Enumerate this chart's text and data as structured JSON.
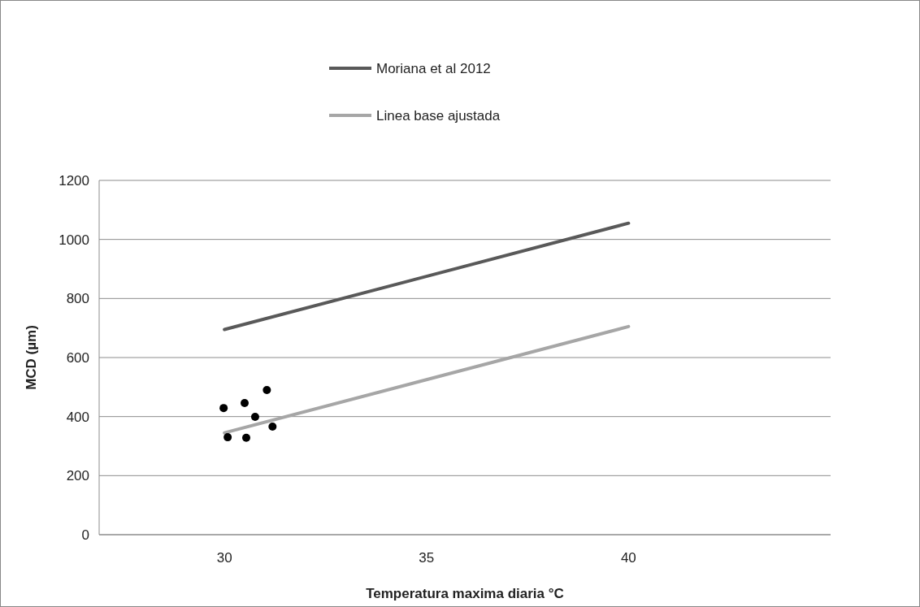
{
  "chart_data": {
    "type": "line",
    "xlabel": "Temperatura maxima diaria °C",
    "ylabel": "MCD (µm)",
    "xlim": [
      26.9,
      45
    ],
    "xticks": [
      30,
      35,
      40
    ],
    "ylim": [
      0,
      1200
    ],
    "yticks": [
      0,
      200,
      400,
      600,
      800,
      1000,
      1200
    ],
    "grid": "y",
    "legend": "top",
    "line_style": "solid",
    "series": [
      {
        "name": "Moriana et al 2012",
        "color": "#595959",
        "x": [
          30,
          40
        ],
        "values": [
          695,
          1055
        ]
      },
      {
        "name": "Linea base ajustada",
        "color": "#a6a6a6",
        "x": [
          30,
          40
        ],
        "values": [
          345,
          705
        ]
      },
      {
        "type": "scatter",
        "color": "#000000",
        "marker": "circle",
        "x": [
          29.98,
          30.08,
          30.5,
          30.54,
          30.76,
          31.05,
          31.19
        ],
        "values": [
          429,
          330,
          446,
          328,
          399,
          490,
          366
        ]
      }
    ]
  }
}
